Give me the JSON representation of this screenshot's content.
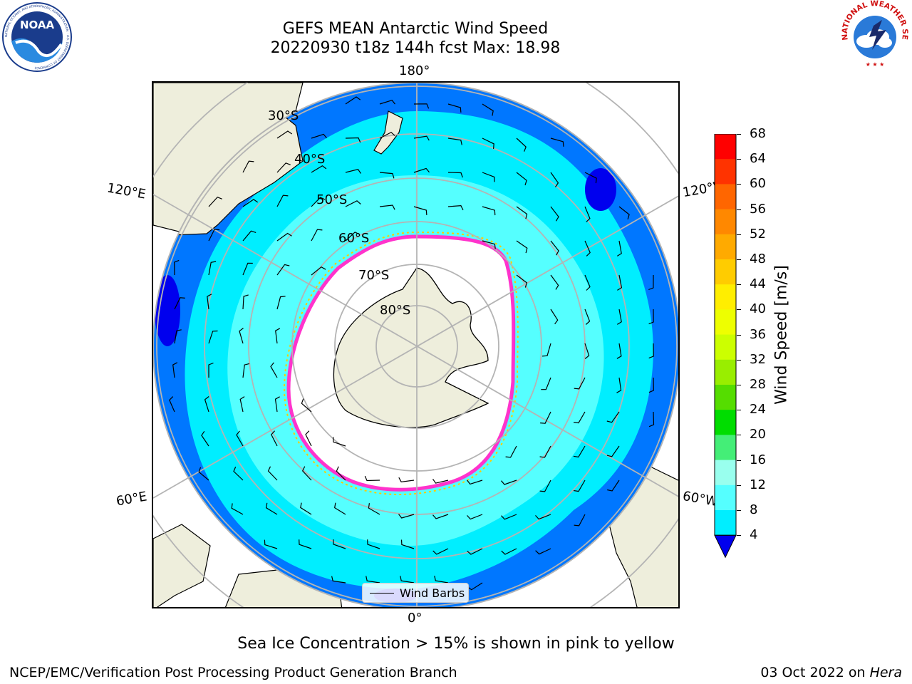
{
  "title": {
    "line1": "GEFS MEAN Antarctic Wind Speed",
    "line2": "20220930 t18z 144h fcst   Max: 18.98"
  },
  "logos": {
    "left": "NOAA",
    "left_ring": "NATIONAL OCEANIC AND ATMOSPHERIC ADMINISTRATION · U.S. DEPARTMENT OF COMMERCE",
    "right_ring": "NATIONAL WEATHER SERVICE"
  },
  "map": {
    "longitude_labels": {
      "top": "180°",
      "bottom": "0°",
      "upper_left": "120°E",
      "upper_right": "120°W",
      "lower_left": "60°E",
      "lower_right": "60°W"
    },
    "latitude_labels": [
      "30°S",
      "40°S",
      "50°S",
      "60°S",
      "70°S",
      "80°S"
    ],
    "legend_label": "Wind Barbs",
    "colors": {
      "land": "#eeeedc",
      "ice": "#ffffff",
      "grid": "#b4b4b4"
    }
  },
  "colorbar": {
    "label": "Wind Speed [m/s]",
    "ticks": [
      "68",
      "64",
      "60",
      "56",
      "52",
      "48",
      "44",
      "40",
      "36",
      "32",
      "28",
      "24",
      "20",
      "16",
      "12",
      "8",
      "4"
    ],
    "colors": [
      "#ff0000",
      "#ff3300",
      "#ff6600",
      "#ff8800",
      "#ffaa00",
      "#ffcc00",
      "#ffee00",
      "#eeff00",
      "#ccff00",
      "#99ee00",
      "#55dd00",
      "#00dd00",
      "#44ee77",
      "#99ffee",
      "#55ffff",
      "#00eeff",
      "#0077ff",
      "#0000ee"
    ]
  },
  "caption": "Sea Ice Concentration > 15% is shown in pink to yellow",
  "footer": {
    "left": "NCEP/EMC/Verification Post Processing Product Generation Branch",
    "right_prefix": "03 Oct 2022 on ",
    "right_machine": "Hera"
  }
}
